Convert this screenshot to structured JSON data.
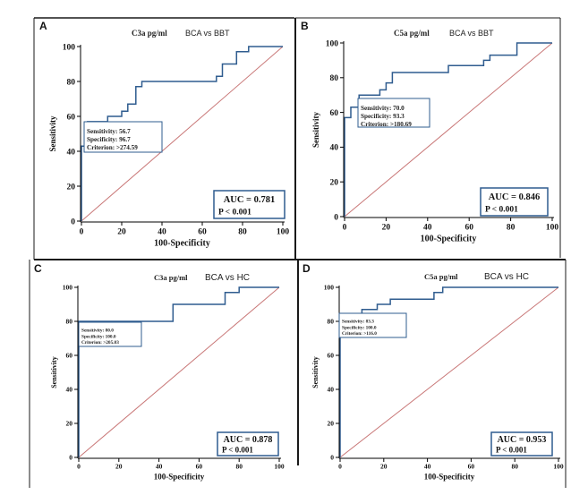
{
  "colors": {
    "roc_line": "#2f5c8f",
    "reference_line": "#c97878",
    "panel_border": "#1a1a1a",
    "box_border": "#2f5c8f",
    "grid_lines": "#000000"
  },
  "chart_data": [
    {
      "panel": "A",
      "type": "line",
      "subtitle_analyte": "C3a pg/ml",
      "subtitle_comparison": "BCA vs BBT",
      "xlabel": "100-Specificity",
      "ylabel": "Sensitivity",
      "xlim": [
        0,
        100
      ],
      "ylim": [
        0,
        100
      ],
      "xticks": [
        0,
        20,
        40,
        60,
        80,
        100
      ],
      "yticks": [
        0,
        20,
        40,
        60,
        80,
        100
      ],
      "grid": false,
      "series": [
        {
          "x": [
            0,
            0,
            3,
            3,
            13,
            13,
            20,
            20,
            23,
            23,
            27,
            27,
            30,
            30,
            33,
            33,
            67,
            67,
            70,
            70,
            77,
            77,
            80,
            80,
            83,
            83,
            100
          ],
          "y": [
            0,
            43,
            43,
            57,
            57,
            60,
            60,
            63,
            63,
            67,
            67,
            77,
            77,
            80,
            80,
            80,
            80,
            83,
            83,
            90,
            90,
            97,
            97,
            97,
            97,
            100,
            100
          ]
        }
      ],
      "reference_line": true,
      "stats_box": {
        "line1": "Sensitivity: 56.7",
        "line2": "Specificity: 96.7",
        "line3": "Criterion: >274.59"
      },
      "auc_box": {
        "auc": "AUC = 0.781",
        "p": "P < 0.001"
      }
    },
    {
      "panel": "B",
      "type": "line",
      "subtitle_analyte": "C5a pg/ml",
      "subtitle_comparison": "BCA vs BBT",
      "xlabel": "100-Specificity",
      "ylabel": "Sensitivity",
      "xlim": [
        0,
        100
      ],
      "ylim": [
        0,
        100
      ],
      "xticks": [
        0,
        20,
        40,
        60,
        80,
        100
      ],
      "yticks": [
        0,
        20,
        40,
        60,
        80,
        100
      ],
      "grid": false,
      "series": [
        {
          "x": [
            0,
            0,
            3,
            3,
            7,
            7,
            17,
            17,
            20,
            20,
            23,
            23,
            27,
            27,
            50,
            50,
            67,
            67,
            70,
            70,
            83,
            83,
            100
          ],
          "y": [
            0,
            57,
            57,
            63,
            63,
            70,
            70,
            73,
            73,
            77,
            77,
            83,
            83,
            83,
            83,
            87,
            87,
            90,
            90,
            93,
            93,
            100,
            100
          ]
        }
      ],
      "reference_line": true,
      "stats_box": {
        "line1": "Sensitivity: 70.0",
        "line2": "Specificity: 93.3",
        "line3": "Criterion: >180.69"
      },
      "auc_box": {
        "auc": "AUC = 0.846",
        "p": "P < 0.001"
      }
    },
    {
      "panel": "C",
      "type": "line",
      "subtitle_analyte": "C3a pg/ml",
      "subtitle_comparison": "BCA vs HC",
      "xlabel": "100-Specificity",
      "ylabel": "Sensitivity",
      "xlim": [
        0,
        100
      ],
      "ylim": [
        0,
        100
      ],
      "xticks": [
        0,
        20,
        40,
        60,
        80,
        100
      ],
      "yticks": [
        0,
        20,
        40,
        60,
        80,
        100
      ],
      "grid": false,
      "series": [
        {
          "x": [
            0,
            0,
            47,
            47,
            73,
            73,
            80,
            80,
            100
          ],
          "y": [
            0,
            80,
            80,
            90,
            90,
            97,
            97,
            100,
            100
          ]
        }
      ],
      "reference_line": true,
      "stats_box": {
        "line1": "Sensitivity: 80.0",
        "line2": "Specificity: 100.0",
        "line3": "Criterion: >205.03"
      },
      "auc_box": {
        "auc": "AUC = 0.878",
        "p": "P < 0.001"
      }
    },
    {
      "panel": "D",
      "type": "line",
      "subtitle_analyte": "C5a pg/ml",
      "subtitle_comparison": "BCA vs HC",
      "xlabel": "100-Specificity",
      "ylabel": "Sensitivity",
      "xlim": [
        0,
        100
      ],
      "ylim": [
        0,
        100
      ],
      "xticks": [
        0,
        20,
        40,
        60,
        80,
        100
      ],
      "yticks": [
        0,
        20,
        40,
        60,
        80,
        100
      ],
      "grid": false,
      "series": [
        {
          "x": [
            0,
            0,
            10,
            10,
            17,
            17,
            23,
            23,
            43,
            43,
            47,
            47,
            100
          ],
          "y": [
            0,
            83,
            83,
            87,
            87,
            90,
            90,
            93,
            93,
            97,
            97,
            100,
            100
          ]
        }
      ],
      "reference_line": true,
      "stats_box": {
        "line1": "Sensitivity: 83.3",
        "line2": "Specificity: 100.0",
        "line3": "Criterion: >116.0"
      },
      "auc_box": {
        "auc": "AUC = 0.953",
        "p": "P < 0.001"
      }
    }
  ]
}
